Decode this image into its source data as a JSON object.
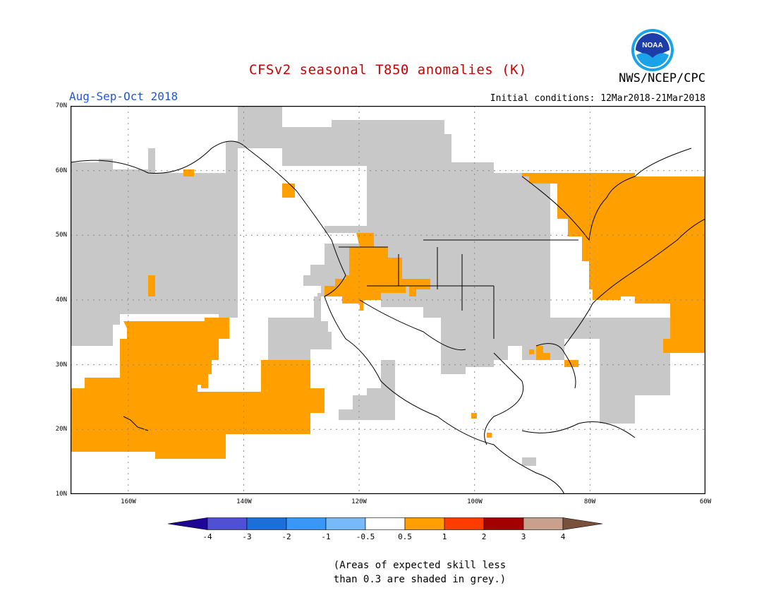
{
  "header": {
    "title": "CFSv2 seasonal T850 anomalies (K)",
    "agency": "NWS/NCEP/CPC",
    "season": "Aug-Sep-Oct 2018",
    "initial_conditions": "Initial conditions: 12Mar2018-21Mar2018",
    "logo_text": "NOAA"
  },
  "colors": {
    "title": "#cc0000",
    "season": "#2255dd",
    "skill_grey": "#c8c8c8",
    "ocean_land_bg": "#ffffff"
  },
  "map": {
    "projection": "cylindrical equidistant",
    "lon_range": [
      "170W",
      "60W"
    ],
    "lat_range": [
      "10N",
      "70N"
    ],
    "y_ticks": [
      "70N",
      "60N",
      "50N",
      "40N",
      "30N",
      "20N",
      "10N"
    ],
    "x_ticks": [
      "160W",
      "140W",
      "120W",
      "100W",
      "80W",
      "60W"
    ],
    "anomaly_regions": [
      {
        "name": "eastern-pacific-warm",
        "category": "0.5 to 1",
        "color": "#ff9f00"
      },
      {
        "name": "northwest-us-warm",
        "category": "0.5 to 1",
        "color": "#ff9f00"
      },
      {
        "name": "eastern-canada-warm",
        "category": "0.5 to 1",
        "color": "#ff9f00"
      },
      {
        "name": "northeast-us-warm",
        "category": "0.5 to 1",
        "color": "#ff9f00"
      },
      {
        "name": "alaska-warm",
        "category": "0.5 to 1",
        "color": "#ff9f00"
      },
      {
        "name": "gulf-coast-warm",
        "category": "0.5 to 1",
        "color": "#ff9f00"
      }
    ]
  },
  "colorbar": {
    "ticks": [
      "-4",
      "-3",
      "-2",
      "-1",
      "-0.5",
      "0.5",
      "1",
      "2",
      "3",
      "4"
    ],
    "colors": [
      "#1e0596",
      "#5050d2",
      "#1e6ed7",
      "#3c96f5",
      "#78b9fa",
      "#ffffff",
      "#ff9f00",
      "#ff3c00",
      "#a50000",
      "#c8a08c",
      "#78503c"
    ]
  },
  "footnote": {
    "line1": "(Areas of expected skill less",
    "line2": "than 0.3 are shaded in grey.)"
  }
}
